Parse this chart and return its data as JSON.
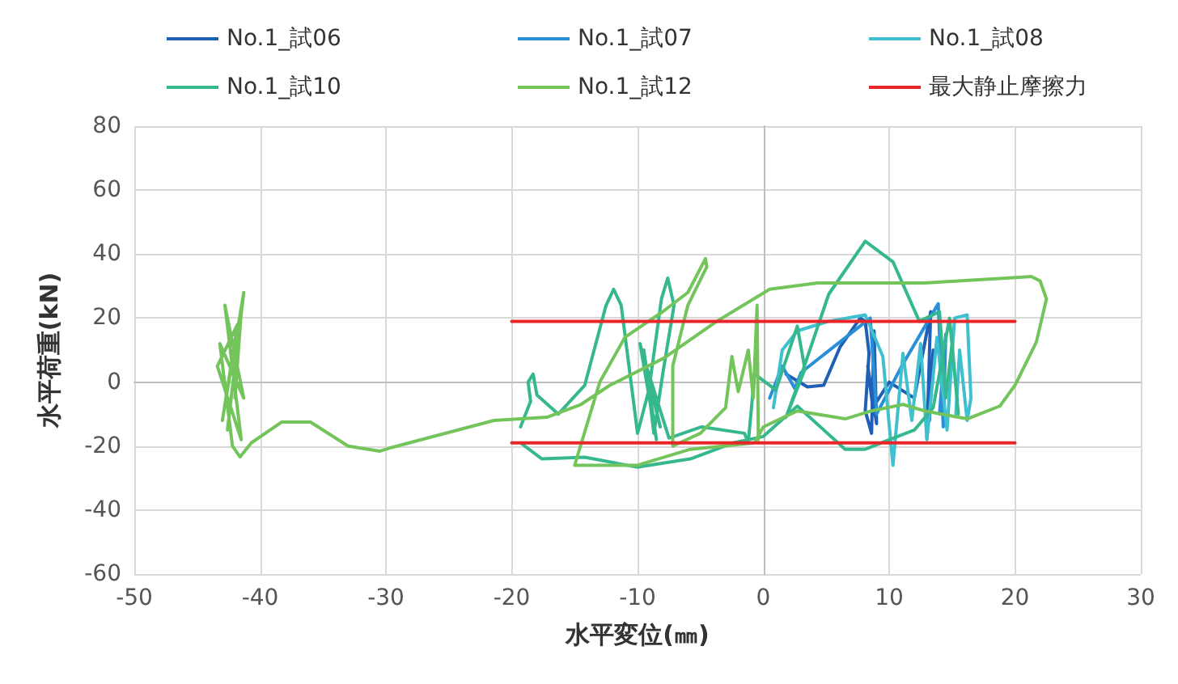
{
  "chart_data": {
    "type": "line",
    "xlabel": "水平変位(㎜)",
    "ylabel": "水平荷重(kN)",
    "xlim": [
      -50,
      30
    ],
    "xticks": [
      -50,
      -40,
      -30,
      -20,
      -10,
      0,
      10,
      20,
      30
    ],
    "ylim": [
      -60,
      80
    ],
    "yticks": [
      -60,
      -40,
      -20,
      0,
      20,
      40,
      60,
      80
    ],
    "grid": true,
    "legend": "top",
    "marker": "none",
    "line_style": "solid",
    "series": [
      {
        "name": "No.1_試06",
        "color": "#1f5fb5",
        "x": [
          1.8,
          3.5,
          4.8,
          6.1,
          7.7,
          8.1,
          8.4,
          8.1,
          8.6,
          8.8,
          9,
          8.3,
          8.7,
          10,
          12,
          13.3,
          13,
          13.5,
          13.2
        ],
        "values": [
          2.5,
          -1.5,
          -1,
          11,
          20,
          19,
          9,
          -9,
          -16,
          16,
          -13,
          5,
          -8,
          0,
          -5,
          22,
          -17.5,
          10,
          -12
        ]
      },
      {
        "name": "No.1_試07",
        "color": "#2a8fd9",
        "x": [
          0.5,
          1.5,
          2.5,
          3,
          8.5,
          9,
          11,
          13.9,
          14.3,
          14.5,
          14,
          14.4
        ],
        "values": [
          -5,
          5,
          -2,
          3,
          20,
          -10,
          5,
          24.5,
          -14,
          15,
          -10,
          8
        ]
      },
      {
        "name": "No.1_試08",
        "color": "#3fbfcf",
        "x": [
          0.8,
          1.5,
          2.7,
          5.2,
          8.1,
          9.5,
          10.3,
          11.1,
          11.8,
          12.5,
          13,
          13.8,
          14.6,
          15.2,
          16.2,
          16.5,
          16.2,
          15.6,
          15.3
        ],
        "values": [
          -8,
          10,
          16,
          19,
          21,
          8,
          -26,
          9,
          -12,
          12,
          -18,
          14,
          -15,
          20,
          21,
          -5,
          -12,
          10,
          -10
        ]
      },
      {
        "name": "No.1_試10",
        "color": "#36b88f",
        "x": [
          -19.3,
          -18.5,
          -18.7,
          -18.3,
          -18,
          -16.3,
          -14.2,
          -12.5,
          -11.9,
          -11.3,
          -10.6,
          -10,
          -9.1,
          -8.1,
          -7.6,
          -7.1,
          -8,
          -8.7,
          -9.5,
          -8.5,
          -9.8,
          -8.2,
          -9.3,
          -7.5,
          -4.9,
          -1.5,
          -1.2,
          -0.7,
          1,
          2.7,
          3.3,
          1.8,
          3,
          5.2,
          8.1,
          10.3,
          12.4,
          14,
          14.5,
          15,
          15.5,
          14.8,
          13.5,
          12,
          10,
          8.1,
          6.5,
          2.7,
          0,
          -2.4,
          -5.8,
          -10,
          -14.2,
          -17.6,
          -19.3
        ],
        "values": [
          -14,
          -6,
          0,
          2.5,
          -4,
          -10,
          -1,
          24,
          29,
          24,
          2.5,
          -16,
          -2.5,
          26,
          32.5,
          24,
          2.5,
          -16,
          10,
          -18,
          12,
          -14,
          5,
          -17.5,
          -14,
          -16,
          -19,
          2.5,
          -2.5,
          17.5,
          4,
          -11,
          2,
          27.5,
          44,
          37.6,
          19,
          22,
          -5,
          12,
          -10,
          20,
          -8,
          -15,
          -18,
          -21,
          -21,
          -7.5,
          -17,
          -19,
          -24,
          -26.6,
          -23.5,
          -24,
          -19
        ]
      },
      {
        "name": "No.1_試12",
        "color": "#74c45c",
        "x": [
          -42,
          -41.5,
          -42.6,
          -41.3,
          -43,
          -41.8,
          -43.4,
          -41.5,
          -42.8,
          -41.3,
          -43.2,
          -42.2,
          -41.6,
          -40.7,
          -38.3,
          -36,
          -33,
          -30.5,
          -29.6,
          -21.4,
          -17.2,
          -14.5,
          -12.2,
          -7.9,
          -3.7,
          0.5,
          4.3,
          12.8,
          21.3,
          22,
          22.5,
          21.7,
          20,
          18.8,
          16.2,
          12.8,
          11.1,
          8.6,
          6.5,
          2.7,
          0,
          -0.7,
          -5.8,
          -10,
          -15,
          -13,
          -11,
          -8,
          -6,
          -4.6,
          -4.5,
          -6,
          -7.2,
          -7.2,
          -5,
          -3,
          -2.5,
          -2,
          -1.2,
          -0.8,
          -0.5,
          -0.4
        ],
        "values": [
          -5,
          22,
          -15,
          28,
          -12,
          18,
          5,
          -18,
          24,
          -5,
          12,
          -20,
          -23.4,
          -19,
          -12.5,
          -12.5,
          -20,
          -21.6,
          -20.5,
          -12,
          -11,
          -7,
          -1,
          7.5,
          19,
          29,
          31,
          31,
          33,
          31.6,
          26,
          12.5,
          -1,
          -7.5,
          -11.5,
          -9,
          -7,
          -9,
          -11.5,
          -9,
          -14,
          -19,
          -21,
          -26,
          -26,
          0,
          14,
          22,
          28,
          38.6,
          36,
          24,
          5,
          -20,
          -16,
          -8,
          8,
          -3,
          10,
          -5,
          24,
          -18
        ]
      },
      {
        "name": "最大静止摩擦力",
        "color": "#e8262a",
        "x": [
          -20,
          20
        ],
        "values": [
          19,
          19
        ]
      },
      {
        "color": "#e8262a",
        "x": [
          -20,
          20
        ],
        "values": [
          -19,
          -19
        ]
      }
    ]
  }
}
